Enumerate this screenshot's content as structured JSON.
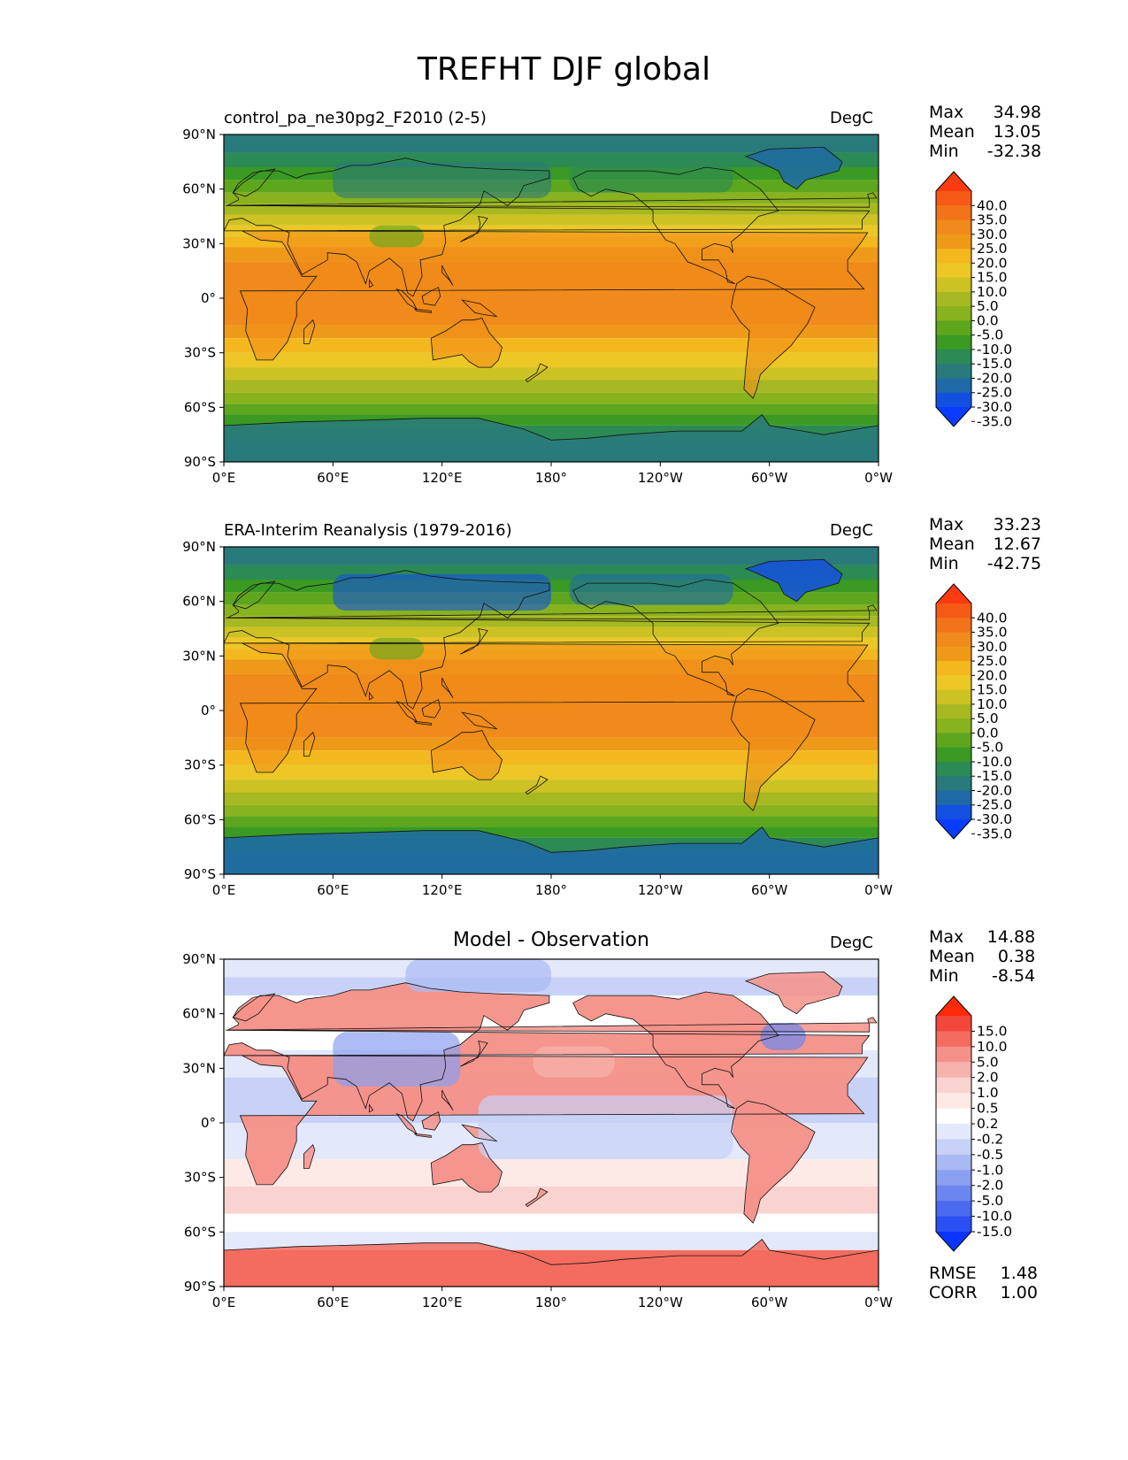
{
  "title": "TREFHT DJF global",
  "axis_ticks": {
    "lat": [
      "90°N",
      "60°N",
      "30°N",
      "0°",
      "30°S",
      "60°S",
      "90°S"
    ],
    "lon": [
      "0°E",
      "60°E",
      "120°E",
      "180°",
      "120°W",
      "60°W",
      "0°W"
    ]
  },
  "panels": [
    {
      "subtitle": "control_pa_ne30pg2_F2010 (2-5)",
      "units": "DegC",
      "stats": {
        "max_label": "Max",
        "max": "34.98",
        "mean_label": "Mean",
        "mean": "13.05",
        "min_label": "Min",
        "min": "-32.38"
      },
      "colorbar": {
        "labels": [
          "40.0",
          "35.0",
          "30.0",
          "25.0",
          "20.0",
          "15.0",
          "10.0",
          "5.0",
          "0.0",
          "-5.0",
          "-10.0",
          "-15.0",
          "-20.0",
          "-25.0",
          "-30.0",
          "-35.0"
        ],
        "colors": [
          "#fd3a12",
          "#f65a16",
          "#f2731a",
          "#f08a1a",
          "#ee9a18",
          "#f3b81e",
          "#ecc726",
          "#cdc224",
          "#a6b822",
          "#88b21e",
          "#5ea61d",
          "#3a9a24",
          "#2c8a55",
          "#297a7a",
          "#1f6aa6",
          "#1450e0",
          "#0a3cff"
        ]
      },
      "field": "temp",
      "stippled": false
    },
    {
      "subtitle": "ERA-Interim Reanalysis (1979-2016)",
      "units": "DegC",
      "stats": {
        "max_label": "Max",
        "max": "33.23",
        "mean_label": "Mean",
        "mean": "12.67",
        "min_label": "Min",
        "min": "-42.75"
      },
      "colorbar": {
        "labels": [
          "40.0",
          "35.0",
          "30.0",
          "25.0",
          "20.0",
          "15.0",
          "10.0",
          "5.0",
          "0.0",
          "-5.0",
          "-10.0",
          "-15.0",
          "-20.0",
          "-25.0",
          "-30.0",
          "-35.0"
        ],
        "colors": [
          "#fd3a12",
          "#f65a16",
          "#f2731a",
          "#f08a1a",
          "#ee9a18",
          "#f3b81e",
          "#ecc726",
          "#cdc224",
          "#a6b822",
          "#88b21e",
          "#5ea61d",
          "#3a9a24",
          "#2c8a55",
          "#297a7a",
          "#1f6aa6",
          "#1450e0",
          "#0a3cff"
        ]
      },
      "field": "temp",
      "stippled": false
    },
    {
      "subtitle": "Model - Observation",
      "units": "DegC",
      "stats": {
        "max_label": "Max",
        "max": "14.88",
        "mean_label": "Mean",
        "mean": "0.38",
        "min_label": "Min",
        "min": "-8.54"
      },
      "colorbar": {
        "labels": [
          "15.0",
          "10.0",
          "5.0",
          "2.0",
          "1.0",
          "0.5",
          "0.2",
          "-0.2",
          "-0.5",
          "-1.0",
          "-2.0",
          "-5.0",
          "-10.0",
          "-15.0"
        ],
        "colors": [
          "#ff2a0a",
          "#f2473a",
          "#f36c5f",
          "#f4928a",
          "#f6b3ad",
          "#f9d3cf",
          "#fde9e6",
          "#ffffff",
          "#e3e8fa",
          "#c7d2f6",
          "#a9b9f3",
          "#8aa0f0",
          "#6b86ee",
          "#4a6af0",
          "#2a50f5",
          "#0a35ff"
        ]
      },
      "field": "diff",
      "stippled": false,
      "rmse_label": "RMSE",
      "rmse": "1.48",
      "corr_label": "CORR",
      "corr": "1.00"
    }
  ],
  "chart_data": [
    {
      "type": "heatmap",
      "title": "control_pa_ne30pg2_F2010 (2-5)",
      "units": "DegC",
      "x_ticks": [
        "0°E",
        "60°E",
        "120°E",
        "180°",
        "120°W",
        "60°W",
        "0°W"
      ],
      "y_ticks": [
        "90°N",
        "60°N",
        "30°N",
        "0°",
        "30°S",
        "60°S",
        "90°S"
      ],
      "max": 34.98,
      "mean": 13.05,
      "min": -32.38,
      "levels": [
        -35,
        -30,
        -25,
        -20,
        -15,
        -10,
        -5,
        0,
        5,
        10,
        15,
        20,
        25,
        30,
        35,
        40
      ]
    },
    {
      "type": "heatmap",
      "title": "ERA-Interim Reanalysis (1979-2016)",
      "units": "DegC",
      "x_ticks": [
        "0°E",
        "60°E",
        "120°E",
        "180°",
        "120°W",
        "60°W",
        "0°W"
      ],
      "y_ticks": [
        "90°N",
        "60°N",
        "30°N",
        "0°",
        "30°S",
        "60°S",
        "90°S"
      ],
      "max": 33.23,
      "mean": 12.67,
      "min": -42.75,
      "levels": [
        -35,
        -30,
        -25,
        -20,
        -15,
        -10,
        -5,
        0,
        5,
        10,
        15,
        20,
        25,
        30,
        35,
        40
      ]
    },
    {
      "type": "heatmap",
      "title": "Model - Observation",
      "units": "DegC",
      "x_ticks": [
        "0°E",
        "60°E",
        "120°E",
        "180°",
        "120°W",
        "60°W",
        "0°W"
      ],
      "y_ticks": [
        "90°N",
        "60°N",
        "30°N",
        "0°",
        "30°S",
        "60°S",
        "90°S"
      ],
      "max": 14.88,
      "mean": 0.38,
      "min": -8.54,
      "rmse": 1.48,
      "corr": 1.0,
      "levels": [
        -15,
        -10,
        -5,
        -2,
        -1,
        -0.5,
        -0.2,
        0.2,
        0.5,
        1,
        2,
        5,
        10,
        15
      ]
    }
  ]
}
